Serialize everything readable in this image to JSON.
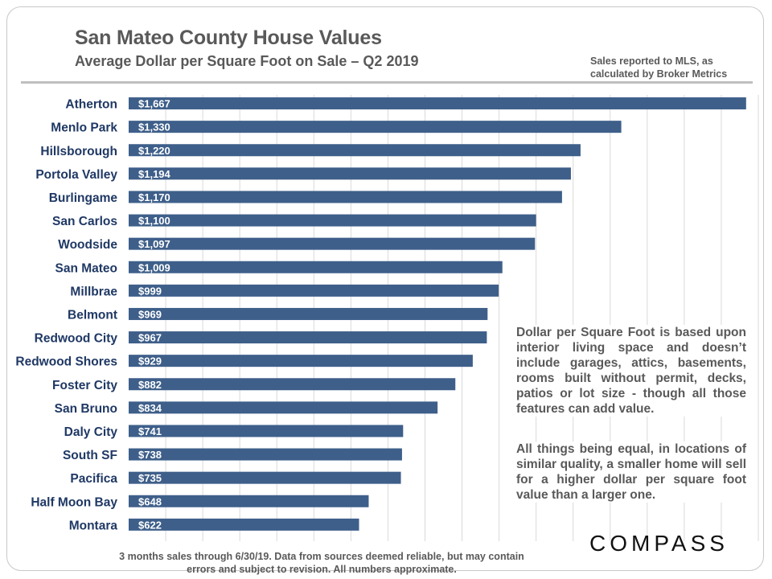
{
  "header": {
    "title": "San Mateo County House Values",
    "subtitle": "Average Dollar  per Square Foot on Sale – Q2 2019",
    "source_line1": "Sales reported to MLS, as",
    "source_line2": "calculated by Broker Metrics"
  },
  "chart_data": {
    "type": "bar",
    "orientation": "horizontal",
    "categories": [
      "Atherton",
      "Menlo Park",
      "Hillsborough",
      "Portola Valley",
      "Burlingame",
      "San Carlos",
      "Woodside",
      "San Mateo",
      "Millbrae",
      "Belmont",
      "Redwood City",
      "Redwood Shores",
      "Foster City",
      "San Bruno",
      "Daly City",
      "South SF",
      "Pacifica",
      "Half Moon Bay",
      "Montara"
    ],
    "values": [
      1667,
      1330,
      1220,
      1194,
      1170,
      1100,
      1097,
      1009,
      999,
      969,
      967,
      929,
      882,
      834,
      741,
      738,
      735,
      648,
      622
    ],
    "data_labels": [
      "$1,667",
      "$1,330",
      "$1,220",
      "$1,194",
      "$1,170",
      "$1,100",
      "$1,097",
      "$1,009",
      "$999",
      "$969",
      "$967",
      "$929",
      "$882",
      "$834",
      "$741",
      "$738",
      "$735",
      "$648",
      "$622"
    ],
    "xlim": [
      0,
      1700
    ],
    "grid": true,
    "bar_color": "#3e5f8a",
    "label_color": "#1f3864"
  },
  "notes": {
    "note1": "Dollar per Square Foot is based upon interior living space and doesn’t include garages, attics, basements, rooms built without permit, decks, patios or lot size - though all those features can add value.",
    "note2": "All things being equal, in locations of similar quality, a smaller home will sell for a higher dollar per square foot value than a larger one."
  },
  "footer": {
    "line1": "3 months sales through  6/30/19. Data from sources  deemed reliable, but may contain",
    "line2": "errors and subject to revision. All numbers approximate."
  },
  "logo": {
    "text": "COMPASS"
  }
}
